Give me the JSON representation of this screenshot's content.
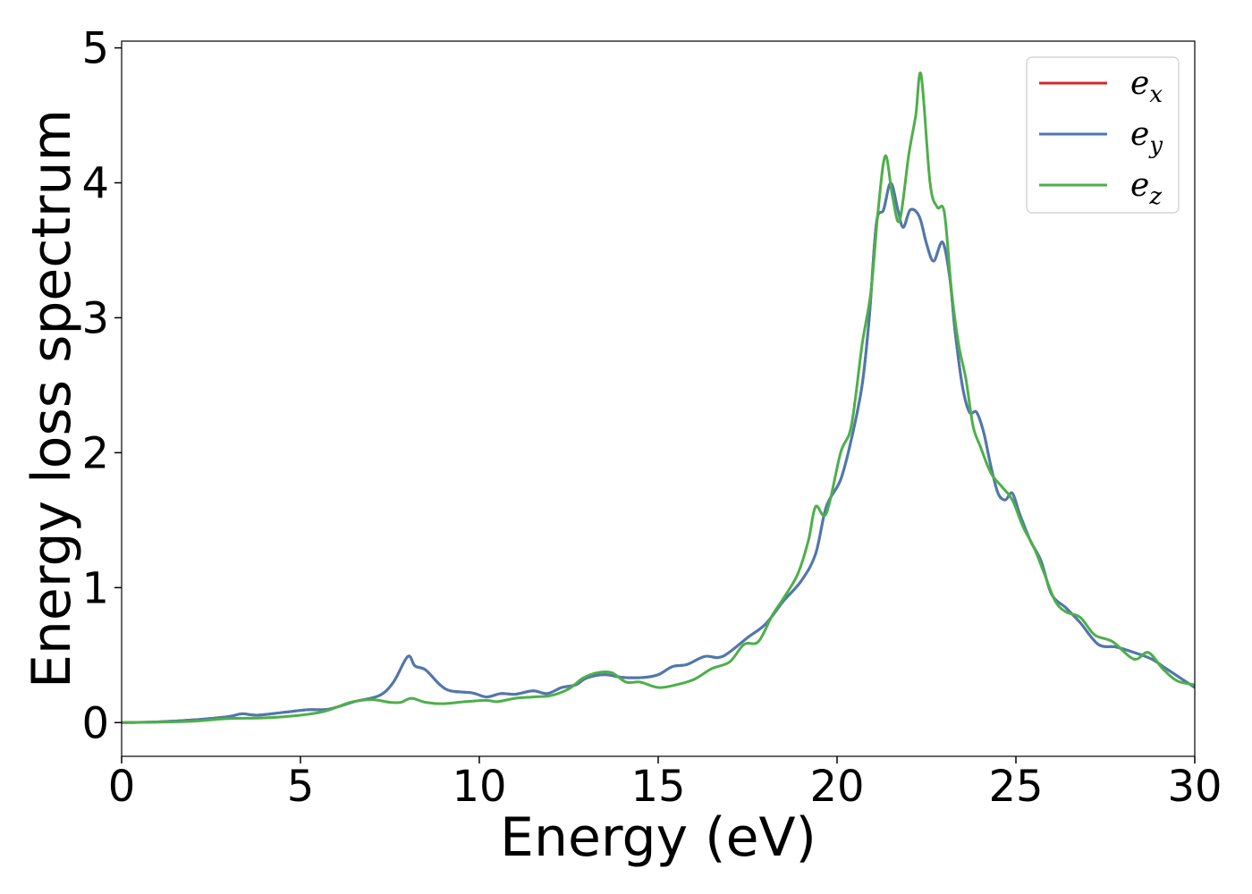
{
  "chart_data": {
    "type": "line",
    "xlabel": "Energy (eV)",
    "ylabel": "Energy loss spectrum",
    "xlim": [
      0,
      30
    ],
    "ylim": [
      -0.25,
      5.05
    ],
    "x_ticks": [
      "0",
      "5",
      "10",
      "15",
      "20",
      "25",
      "30"
    ],
    "y_ticks": [
      "0",
      "1",
      "2",
      "3",
      "4",
      "5"
    ],
    "grid": false,
    "legend_position": "top-right",
    "series": [
      {
        "name": "e_x",
        "legend_base": "e",
        "legend_sub": "x",
        "color": "#d62728",
        "points": [
          [
            0,
            0.0
          ],
          [
            1,
            0.005
          ],
          [
            2,
            0.02
          ],
          [
            3,
            0.045
          ],
          [
            3.35,
            0.065
          ],
          [
            3.8,
            0.055
          ],
          [
            4.5,
            0.075
          ],
          [
            5.2,
            0.095
          ],
          [
            5.8,
            0.1
          ],
          [
            6.5,
            0.155
          ],
          [
            7.2,
            0.2
          ],
          [
            7.6,
            0.3
          ],
          [
            8.0,
            0.49
          ],
          [
            8.2,
            0.42
          ],
          [
            8.5,
            0.39
          ],
          [
            8.9,
            0.28
          ],
          [
            9.2,
            0.235
          ],
          [
            9.8,
            0.22
          ],
          [
            10.2,
            0.19
          ],
          [
            10.6,
            0.215
          ],
          [
            11.0,
            0.21
          ],
          [
            11.5,
            0.235
          ],
          [
            11.9,
            0.215
          ],
          [
            12.3,
            0.26
          ],
          [
            12.7,
            0.28
          ],
          [
            13.0,
            0.33
          ],
          [
            13.5,
            0.355
          ],
          [
            14.0,
            0.335
          ],
          [
            14.6,
            0.335
          ],
          [
            15.0,
            0.355
          ],
          [
            15.4,
            0.415
          ],
          [
            15.8,
            0.43
          ],
          [
            16.3,
            0.49
          ],
          [
            16.8,
            0.49
          ],
          [
            17.5,
            0.63
          ],
          [
            18.0,
            0.73
          ],
          [
            18.5,
            0.9
          ],
          [
            19.0,
            1.05
          ],
          [
            19.4,
            1.25
          ],
          [
            19.7,
            1.6
          ],
          [
            20.1,
            1.8
          ],
          [
            20.4,
            2.1
          ],
          [
            20.7,
            2.5
          ],
          [
            20.9,
            3.0
          ],
          [
            21.1,
            3.7
          ],
          [
            21.3,
            3.8
          ],
          [
            21.5,
            4.0
          ],
          [
            21.7,
            3.8
          ],
          [
            21.85,
            3.67
          ],
          [
            22.05,
            3.8
          ],
          [
            22.3,
            3.75
          ],
          [
            22.5,
            3.55
          ],
          [
            22.7,
            3.42
          ],
          [
            22.95,
            3.56
          ],
          [
            23.15,
            3.3
          ],
          [
            23.3,
            2.9
          ],
          [
            23.5,
            2.5
          ],
          [
            23.7,
            2.3
          ],
          [
            23.9,
            2.3
          ],
          [
            24.1,
            2.15
          ],
          [
            24.3,
            1.9
          ],
          [
            24.5,
            1.7
          ],
          [
            24.7,
            1.65
          ],
          [
            24.9,
            1.7
          ],
          [
            25.1,
            1.55
          ],
          [
            25.4,
            1.35
          ],
          [
            25.7,
            1.2
          ],
          [
            26.0,
            0.95
          ],
          [
            26.4,
            0.85
          ],
          [
            26.8,
            0.74
          ],
          [
            27.3,
            0.58
          ],
          [
            27.8,
            0.56
          ],
          [
            28.3,
            0.52
          ],
          [
            28.8,
            0.47
          ],
          [
            29.2,
            0.4
          ],
          [
            29.6,
            0.33
          ],
          [
            30,
            0.26
          ]
        ]
      },
      {
        "name": "e_y",
        "legend_base": "e",
        "legend_sub": "y",
        "color": "#4a7ab0",
        "points": [
          [
            0,
            0.0
          ],
          [
            1,
            0.005
          ],
          [
            2,
            0.02
          ],
          [
            3,
            0.045
          ],
          [
            3.35,
            0.065
          ],
          [
            3.8,
            0.055
          ],
          [
            4.5,
            0.075
          ],
          [
            5.2,
            0.095
          ],
          [
            5.8,
            0.1
          ],
          [
            6.5,
            0.155
          ],
          [
            7.2,
            0.2
          ],
          [
            7.6,
            0.3
          ],
          [
            8.0,
            0.49
          ],
          [
            8.2,
            0.42
          ],
          [
            8.5,
            0.39
          ],
          [
            8.9,
            0.28
          ],
          [
            9.2,
            0.235
          ],
          [
            9.8,
            0.22
          ],
          [
            10.2,
            0.19
          ],
          [
            10.6,
            0.215
          ],
          [
            11.0,
            0.21
          ],
          [
            11.5,
            0.235
          ],
          [
            11.9,
            0.215
          ],
          [
            12.3,
            0.26
          ],
          [
            12.7,
            0.28
          ],
          [
            13.0,
            0.33
          ],
          [
            13.5,
            0.355
          ],
          [
            14.0,
            0.335
          ],
          [
            14.6,
            0.335
          ],
          [
            15.0,
            0.355
          ],
          [
            15.4,
            0.415
          ],
          [
            15.8,
            0.43
          ],
          [
            16.3,
            0.49
          ],
          [
            16.8,
            0.49
          ],
          [
            17.5,
            0.63
          ],
          [
            18.0,
            0.73
          ],
          [
            18.5,
            0.9
          ],
          [
            19.0,
            1.05
          ],
          [
            19.4,
            1.25
          ],
          [
            19.7,
            1.6
          ],
          [
            20.1,
            1.8
          ],
          [
            20.4,
            2.1
          ],
          [
            20.7,
            2.5
          ],
          [
            20.9,
            3.0
          ],
          [
            21.1,
            3.7
          ],
          [
            21.3,
            3.8
          ],
          [
            21.5,
            4.0
          ],
          [
            21.7,
            3.8
          ],
          [
            21.85,
            3.67
          ],
          [
            22.05,
            3.8
          ],
          [
            22.3,
            3.75
          ],
          [
            22.5,
            3.55
          ],
          [
            22.7,
            3.42
          ],
          [
            22.95,
            3.56
          ],
          [
            23.15,
            3.3
          ],
          [
            23.3,
            2.9
          ],
          [
            23.5,
            2.5
          ],
          [
            23.7,
            2.3
          ],
          [
            23.9,
            2.3
          ],
          [
            24.1,
            2.15
          ],
          [
            24.3,
            1.9
          ],
          [
            24.5,
            1.7
          ],
          [
            24.7,
            1.65
          ],
          [
            24.9,
            1.7
          ],
          [
            25.1,
            1.55
          ],
          [
            25.4,
            1.35
          ],
          [
            25.7,
            1.2
          ],
          [
            26.0,
            0.95
          ],
          [
            26.4,
            0.85
          ],
          [
            26.8,
            0.74
          ],
          [
            27.3,
            0.58
          ],
          [
            27.8,
            0.56
          ],
          [
            28.3,
            0.52
          ],
          [
            28.8,
            0.47
          ],
          [
            29.2,
            0.4
          ],
          [
            29.6,
            0.33
          ],
          [
            30,
            0.26
          ]
        ]
      },
      {
        "name": "e_z",
        "legend_base": "e",
        "legend_sub": "z",
        "color": "#4daf4a",
        "points": [
          [
            0,
            0.0
          ],
          [
            1,
            0.003
          ],
          [
            2,
            0.01
          ],
          [
            3,
            0.03
          ],
          [
            4,
            0.035
          ],
          [
            5,
            0.055
          ],
          [
            5.7,
            0.085
          ],
          [
            6.4,
            0.15
          ],
          [
            7.0,
            0.17
          ],
          [
            7.5,
            0.15
          ],
          [
            7.8,
            0.15
          ],
          [
            8.1,
            0.18
          ],
          [
            8.5,
            0.15
          ],
          [
            9.0,
            0.14
          ],
          [
            9.6,
            0.155
          ],
          [
            10.2,
            0.165
          ],
          [
            10.5,
            0.155
          ],
          [
            11.0,
            0.18
          ],
          [
            11.5,
            0.19
          ],
          [
            12.0,
            0.2
          ],
          [
            12.5,
            0.25
          ],
          [
            12.9,
            0.33
          ],
          [
            13.3,
            0.37
          ],
          [
            13.7,
            0.37
          ],
          [
            14.1,
            0.3
          ],
          [
            14.5,
            0.3
          ],
          [
            15.0,
            0.26
          ],
          [
            15.5,
            0.28
          ],
          [
            16.0,
            0.32
          ],
          [
            16.5,
            0.4
          ],
          [
            17.0,
            0.45
          ],
          [
            17.4,
            0.58
          ],
          [
            17.8,
            0.6
          ],
          [
            18.2,
            0.8
          ],
          [
            18.5,
            0.92
          ],
          [
            18.9,
            1.1
          ],
          [
            19.2,
            1.35
          ],
          [
            19.4,
            1.6
          ],
          [
            19.7,
            1.55
          ],
          [
            20.1,
            2.0
          ],
          [
            20.4,
            2.2
          ],
          [
            20.7,
            2.8
          ],
          [
            20.95,
            3.2
          ],
          [
            21.15,
            3.8
          ],
          [
            21.35,
            4.2
          ],
          [
            21.55,
            3.9
          ],
          [
            21.75,
            3.72
          ],
          [
            22.0,
            4.2
          ],
          [
            22.2,
            4.5
          ],
          [
            22.35,
            4.8
          ],
          [
            22.6,
            4.0
          ],
          [
            22.8,
            3.82
          ],
          [
            23.0,
            3.78
          ],
          [
            23.2,
            3.2
          ],
          [
            23.4,
            2.8
          ],
          [
            23.6,
            2.55
          ],
          [
            23.8,
            2.2
          ],
          [
            24.0,
            2.05
          ],
          [
            24.3,
            1.85
          ],
          [
            24.6,
            1.75
          ],
          [
            24.9,
            1.65
          ],
          [
            25.2,
            1.45
          ],
          [
            25.5,
            1.3
          ],
          [
            25.8,
            1.1
          ],
          [
            26.1,
            0.9
          ],
          [
            26.4,
            0.82
          ],
          [
            26.8,
            0.78
          ],
          [
            27.2,
            0.65
          ],
          [
            27.7,
            0.6
          ],
          [
            28.3,
            0.47
          ],
          [
            28.7,
            0.52
          ],
          [
            29.1,
            0.4
          ],
          [
            29.5,
            0.31
          ],
          [
            30,
            0.28
          ]
        ]
      }
    ]
  }
}
